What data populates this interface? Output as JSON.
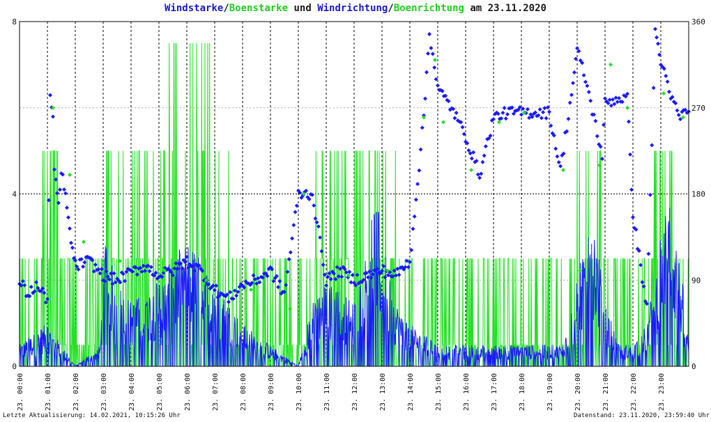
{
  "header": {
    "title_part1": "Windstarke",
    "title_sep1": "/",
    "title_part2": "Boenstarke",
    "title_und": " und ",
    "title_part3": "Windrichtung",
    "title_sep2": "/",
    "title_part4": "Boenrichtung",
    "title_am": " am ",
    "title_date": "23.11.2020"
  },
  "footer": {
    "left": "Letzte Aktualisierung: 14.02.2021, 10:15:26 Uhr",
    "right": "Datenstand: 23.11.2020, 23:59:40 Uhr"
  },
  "colors": {
    "wind": "#1a1aff",
    "gust": "#22e022",
    "grid": "#000000",
    "minor_grid": "#aaaaaa"
  },
  "chart_data": {
    "type": "line",
    "title": "Windstarke/Boenstarke und Windrichtung/Boenrichtung am 23.11.2020",
    "x_range": [
      0,
      24
    ],
    "x_unit": "hours",
    "x_tick_labels": [
      "23. 00:00",
      "23. 01:00",
      "23. 02:00",
      "23. 03:00",
      "23. 04:00",
      "23. 05:00",
      "23. 06:00",
      "23. 07:00",
      "23. 08:00",
      "23. 09:00",
      "23. 10:00",
      "23. 11:00",
      "23. 12:00",
      "23. 13:00",
      "23. 14:00",
      "23. 15:00",
      "23. 16:00",
      "23. 17:00",
      "23. 18:00",
      "23. 19:00",
      "23. 20:00",
      "23. 21:00",
      "23. 22:00",
      "23. 23:00"
    ],
    "y_left": {
      "range": [
        0,
        8
      ],
      "ticks": [
        0,
        4,
        8
      ],
      "minor": [
        2,
        6
      ]
    },
    "y_right": {
      "range": [
        0,
        360
      ],
      "ticks": [
        0,
        90,
        180,
        270,
        360
      ]
    },
    "grid": true,
    "series": [
      {
        "name": "Windstarke",
        "axis": "left",
        "style": "line",
        "color": "#1a1aff",
        "envelope": [
          [
            0,
            0.5
          ],
          [
            1,
            1.0
          ],
          [
            1.5,
            0.5
          ],
          [
            2,
            0
          ],
          [
            2.9,
            0.5
          ],
          [
            3,
            3.0
          ],
          [
            3.5,
            2.0
          ],
          [
            4,
            1.5
          ],
          [
            5,
            2.0
          ],
          [
            5.5,
            2.5
          ],
          [
            6,
            3.0
          ],
          [
            6.5,
            2.5
          ],
          [
            7,
            2.0
          ],
          [
            8,
            1.0
          ],
          [
            9,
            0.5
          ],
          [
            10,
            0
          ],
          [
            10.5,
            1.5
          ],
          [
            11,
            2.0
          ],
          [
            12,
            1.5
          ],
          [
            12.5,
            3.0
          ],
          [
            12.8,
            4.0
          ],
          [
            13,
            3.0
          ],
          [
            13.5,
            1.5
          ],
          [
            14,
            1.0
          ],
          [
            15,
            0.5
          ],
          [
            16,
            0.5
          ],
          [
            17,
            0.5
          ],
          [
            18,
            0.5
          ],
          [
            19,
            0.5
          ],
          [
            19.5,
            0.5
          ],
          [
            20,
            2.0
          ],
          [
            20.5,
            4.0
          ],
          [
            20.7,
            3.0
          ],
          [
            21,
            1.5
          ],
          [
            21.5,
            0.5
          ],
          [
            22,
            0.5
          ],
          [
            22.5,
            1.0
          ],
          [
            23,
            3.0
          ],
          [
            23.3,
            4.0
          ],
          [
            23.7,
            2.5
          ],
          [
            24,
            0.5
          ]
        ]
      },
      {
        "name": "Boenstarke",
        "axis": "left",
        "style": "line",
        "color": "#22e022",
        "envelope": [
          [
            0,
            2.5
          ],
          [
            0.8,
            5.0
          ],
          [
            1.5,
            5.0
          ],
          [
            2,
            2.5
          ],
          [
            2.9,
            2.5
          ],
          [
            3,
            7.5
          ],
          [
            3.5,
            5.0
          ],
          [
            4,
            5.0
          ],
          [
            5,
            5.0
          ],
          [
            5.3,
            7.5
          ],
          [
            6,
            7.5
          ],
          [
            7,
            7.5
          ],
          [
            7.5,
            5.0
          ],
          [
            8,
            2.5
          ],
          [
            9,
            2.5
          ],
          [
            10,
            2.5
          ],
          [
            10.5,
            5.0
          ],
          [
            11,
            5.0
          ],
          [
            12,
            5.0
          ],
          [
            12.5,
            7.5
          ],
          [
            13,
            5.0
          ],
          [
            13.5,
            5.0
          ],
          [
            14,
            2.5
          ],
          [
            15,
            2.5
          ],
          [
            16,
            2.5
          ],
          [
            17,
            2.5
          ],
          [
            18,
            2.5
          ],
          [
            19,
            2.5
          ],
          [
            19.5,
            2.5
          ],
          [
            20,
            5.0
          ],
          [
            20.5,
            7.5
          ],
          [
            21,
            5.0
          ],
          [
            21.5,
            2.5
          ],
          [
            22,
            5.0
          ],
          [
            22.5,
            2.5
          ],
          [
            23,
            7.5
          ],
          [
            23.5,
            5.0
          ],
          [
            24,
            2.5
          ]
        ]
      },
      {
        "name": "Windrichtung",
        "axis": "right",
        "style": "points",
        "color": "#1a1aff",
        "points": [
          [
            0.0,
            89
          ],
          [
            0.3,
            75
          ],
          [
            0.6,
            84
          ],
          [
            1.0,
            70
          ],
          [
            1.1,
            280
          ],
          [
            1.2,
            260
          ],
          [
            1.25,
            200
          ],
          [
            1.4,
            170
          ],
          [
            1.5,
            200
          ],
          [
            1.6,
            190
          ],
          [
            1.8,
            140
          ],
          [
            2.0,
            105
          ],
          [
            2.5,
            110
          ],
          [
            3.0,
            95
          ],
          [
            3.5,
            90
          ],
          [
            4.0,
            98
          ],
          [
            4.5,
            105
          ],
          [
            5.0,
            95
          ],
          [
            5.5,
            100
          ],
          [
            6.0,
            110
          ],
          [
            6.5,
            100
          ],
          [
            7.0,
            80
          ],
          [
            7.5,
            70
          ],
          [
            8.0,
            85
          ],
          [
            8.5,
            90
          ],
          [
            9.0,
            100
          ],
          [
            9.5,
            75
          ],
          [
            10.0,
            180
          ],
          [
            10.5,
            180
          ],
          [
            11.0,
            90
          ],
          [
            11.5,
            100
          ],
          [
            12.0,
            90
          ],
          [
            12.5,
            95
          ],
          [
            13.0,
            100
          ],
          [
            13.5,
            95
          ],
          [
            14.0,
            110
          ],
          [
            14.5,
            260
          ],
          [
            14.7,
            350
          ],
          [
            15.0,
            290
          ],
          [
            15.5,
            270
          ],
          [
            16.0,
            240
          ],
          [
            16.5,
            200
          ],
          [
            17.0,
            260
          ],
          [
            17.5,
            265
          ],
          [
            18.0,
            265
          ],
          [
            18.5,
            265
          ],
          [
            19.0,
            265
          ],
          [
            19.4,
            205
          ],
          [
            19.8,
            285
          ],
          [
            20.0,
            330
          ],
          [
            20.3,
            300
          ],
          [
            20.6,
            260
          ],
          [
            20.9,
            220
          ],
          [
            21.0,
            275
          ],
          [
            21.5,
            280
          ],
          [
            21.8,
            280
          ],
          [
            22.0,
            160
          ],
          [
            22.5,
            60
          ],
          [
            22.8,
            350
          ],
          [
            23.0,
            320
          ],
          [
            23.3,
            285
          ],
          [
            23.7,
            260
          ],
          [
            24.0,
            270
          ]
        ]
      },
      {
        "name": "Boenrichtung",
        "axis": "right",
        "style": "points",
        "color": "#22e022",
        "points": [
          [
            1.2,
            270
          ],
          [
            1.8,
            200
          ],
          [
            2.3,
            130
          ],
          [
            3.6,
            110
          ],
          [
            5.2,
            100
          ],
          [
            6.7,
            90
          ],
          [
            8.3,
            80
          ],
          [
            9.7,
            60
          ],
          [
            10.2,
            180
          ],
          [
            11.8,
            95
          ],
          [
            13.2,
            100
          ],
          [
            14.5,
            260
          ],
          [
            14.9,
            320
          ],
          [
            15.2,
            255
          ],
          [
            16.2,
            205
          ],
          [
            17.2,
            255
          ],
          [
            18.1,
            265
          ],
          [
            19.5,
            205
          ],
          [
            20.1,
            100
          ],
          [
            20.8,
            210
          ],
          [
            21.2,
            315
          ],
          [
            21.8,
            270
          ],
          [
            23.1,
            285
          ],
          [
            23.8,
            260
          ]
        ]
      }
    ]
  }
}
